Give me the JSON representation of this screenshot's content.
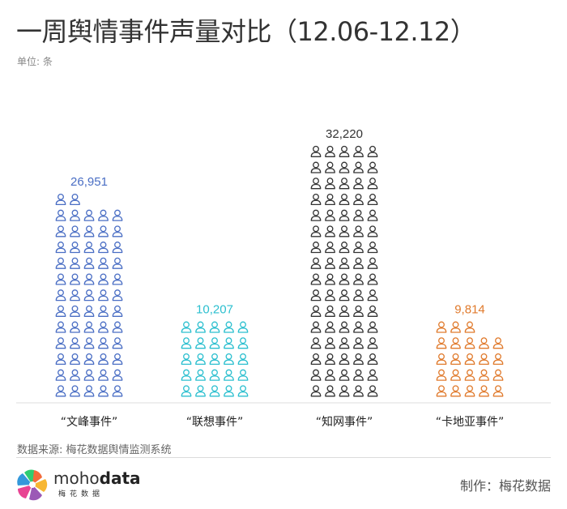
{
  "header": {
    "title": "一周舆情事件声量对比（12.06-12.12）",
    "unit": "单位: 条"
  },
  "chart_data": {
    "type": "bar",
    "subtype": "pictograph",
    "icon": "person-icon",
    "categories": [
      "“文峰事件”",
      "“联想事件”",
      "“知网事件”",
      "“卡地亚事件”"
    ],
    "values": [
      26951,
      10207,
      32220,
      9814
    ],
    "value_labels": [
      "26,951",
      "10,207",
      "32,220",
      "9,814"
    ],
    "colors": [
      "#4a6ec4",
      "#2bbfcf",
      "#333333",
      "#e07a2c"
    ],
    "icon_counts": [
      62,
      25,
      80,
      23
    ],
    "grid": false,
    "legend": "none"
  },
  "footer": {
    "source": "数据来源: 梅花数据舆情监测系统",
    "brand_name_light": "moho",
    "brand_name_bold": "data",
    "brand_sub": "梅花数据",
    "maker": "制作：梅花数据"
  }
}
